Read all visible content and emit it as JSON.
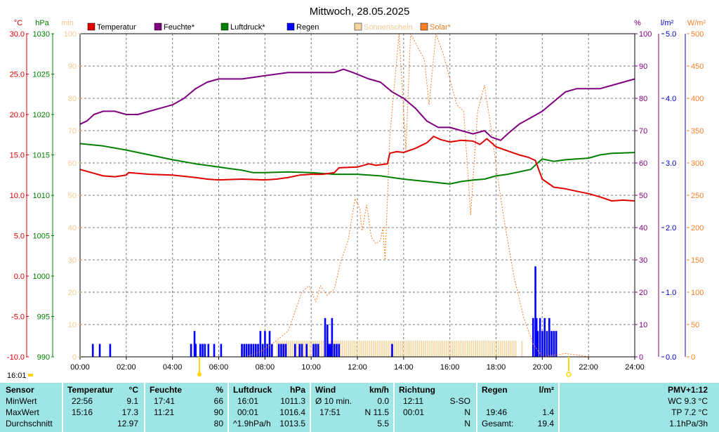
{
  "chart_data": {
    "type": "line",
    "title": "Mittwoch, 28.05.2025",
    "legend": [
      {
        "name": "Temperatur",
        "color": "#e00000"
      },
      {
        "name": "Feuchte*",
        "color": "#800080"
      },
      {
        "name": "Luftdruck*",
        "color": "#008000"
      },
      {
        "name": "Regen",
        "color": "#0000ff"
      },
      {
        "name": "Sonnenschein",
        "color": "#f5d5a0"
      },
      {
        "name": "Solar*",
        "color": "#ff7f27"
      }
    ],
    "axes": {
      "temp": {
        "unit": "°C",
        "min": -10,
        "max": 30,
        "ticks": [
          "30.0",
          "25.0",
          "20.0",
          "15.0",
          "10.0",
          "5.0",
          "0.0",
          "-5.0",
          "-10.0"
        ],
        "color": "#e00000"
      },
      "pressure": {
        "unit": "hPa",
        "min": 990,
        "max": 1030,
        "ticks": [
          "1030",
          "1025",
          "1020",
          "1015",
          "1010",
          "1005",
          "1000",
          "995",
          "990"
        ],
        "color": "#008000"
      },
      "sunshine": {
        "unit": "min",
        "min": 0,
        "max": 100,
        "ticks": [
          "100",
          "90",
          "80",
          "70",
          "60",
          "50",
          "40",
          "30",
          "20",
          "10",
          "0"
        ],
        "color": "#f5c990"
      },
      "humidity": {
        "unit": "%",
        "min": 0,
        "max": 100,
        "ticks": [
          "100",
          "90",
          "80",
          "70",
          "60",
          "50",
          "40",
          "30",
          "20",
          "10",
          "0"
        ],
        "color": "#800080"
      },
      "rain": {
        "unit": "l/m²",
        "min": 0,
        "max": 5,
        "ticks": [
          "5.0",
          "4.0",
          "3.0",
          "2.0",
          "1.0",
          "0.0"
        ],
        "color": "#0000cc"
      },
      "solar": {
        "unit": "W/m²",
        "min": 0,
        "max": 500,
        "ticks": [
          "500",
          "450",
          "400",
          "350",
          "300",
          "250",
          "200",
          "150",
          "100",
          "50",
          "0"
        ],
        "color": "#ff7f27"
      }
    },
    "x_ticks": [
      "00:00",
      "02:00",
      "04:00",
      "06:00",
      "08:00",
      "10:00",
      "12:00",
      "14:00",
      "16:00",
      "18:00",
      "20:00",
      "22:00",
      "24:00"
    ],
    "x_range_h": [
      0,
      24
    ],
    "series": [
      {
        "name": "Temperatur",
        "axis": "temp",
        "color": "#e00000",
        "points": [
          [
            0,
            13.2
          ],
          [
            0.5,
            12.8
          ],
          [
            1,
            12.4
          ],
          [
            1.5,
            12.3
          ],
          [
            2,
            12.5
          ],
          [
            2.1,
            12.8
          ],
          [
            3,
            12.6
          ],
          [
            4,
            12.5
          ],
          [
            5,
            12.2
          ],
          [
            5.5,
            12.0
          ],
          [
            6,
            11.9
          ],
          [
            7,
            12.0
          ],
          [
            8,
            11.9
          ],
          [
            8.5,
            12.0
          ],
          [
            9,
            12.2
          ],
          [
            9.5,
            12.5
          ],
          [
            10,
            12.6
          ],
          [
            10.5,
            12.6
          ],
          [
            11,
            12.8
          ],
          [
            11.2,
            13.4
          ],
          [
            12,
            13.5
          ],
          [
            12.5,
            13.9
          ],
          [
            12.8,
            13.7
          ],
          [
            13.3,
            13.9
          ],
          [
            13.4,
            15.2
          ],
          [
            13.7,
            15.4
          ],
          [
            14,
            15.3
          ],
          [
            14.5,
            15.8
          ],
          [
            15,
            16.5
          ],
          [
            15.3,
            17.3
          ],
          [
            15.6,
            16.9
          ],
          [
            16,
            16.6
          ],
          [
            16.5,
            16.8
          ],
          [
            17,
            16.7
          ],
          [
            17.3,
            16.3
          ],
          [
            17.6,
            17.0
          ],
          [
            18,
            16.0
          ],
          [
            18.5,
            15.5
          ],
          [
            19,
            15.0
          ],
          [
            19.4,
            14.7
          ],
          [
            19.7,
            14.3
          ],
          [
            20,
            12.0
          ],
          [
            20.5,
            11.0
          ],
          [
            21,
            10.8
          ],
          [
            21.5,
            10.5
          ],
          [
            22,
            10.2
          ],
          [
            22.5,
            9.8
          ],
          [
            23,
            9.3
          ],
          [
            23.5,
            9.4
          ],
          [
            24,
            9.3
          ]
        ]
      },
      {
        "name": "Feuchte*",
        "axis": "humidity",
        "color": "#800080",
        "points": [
          [
            0,
            72
          ],
          [
            0.3,
            73
          ],
          [
            0.6,
            75
          ],
          [
            1,
            76
          ],
          [
            1.5,
            76
          ],
          [
            2,
            75
          ],
          [
            2.5,
            75
          ],
          [
            3,
            76
          ],
          [
            3.5,
            77
          ],
          [
            4,
            78
          ],
          [
            4.5,
            80
          ],
          [
            5,
            83
          ],
          [
            5.5,
            85
          ],
          [
            6,
            86
          ],
          [
            6.5,
            86
          ],
          [
            7,
            86
          ],
          [
            7.5,
            86.5
          ],
          [
            8,
            87
          ],
          [
            8.5,
            87.5
          ],
          [
            9,
            88
          ],
          [
            10,
            88
          ],
          [
            11,
            88
          ],
          [
            11.4,
            89
          ],
          [
            11.8,
            88
          ],
          [
            12.5,
            86
          ],
          [
            13,
            85
          ],
          [
            13.5,
            82
          ],
          [
            14,
            80
          ],
          [
            14.5,
            77
          ],
          [
            15,
            73
          ],
          [
            15.5,
            71
          ],
          [
            16,
            71
          ],
          [
            16.5,
            70
          ],
          [
            17,
            69
          ],
          [
            17.5,
            70
          ],
          [
            17.8,
            68
          ],
          [
            18.2,
            67
          ],
          [
            18.5,
            69
          ],
          [
            19,
            72
          ],
          [
            19.5,
            74
          ],
          [
            20,
            76
          ],
          [
            20.5,
            79
          ],
          [
            21,
            82
          ],
          [
            21.5,
            83
          ],
          [
            22,
            83
          ],
          [
            22.5,
            83
          ],
          [
            23,
            84
          ],
          [
            23.5,
            85
          ],
          [
            24,
            86
          ]
        ]
      },
      {
        "name": "Luftdruck*",
        "axis": "pressure",
        "color": "#008000",
        "points": [
          [
            0,
            1016.4
          ],
          [
            1,
            1016.1
          ],
          [
            2,
            1015.6
          ],
          [
            3,
            1015.0
          ],
          [
            4,
            1014.4
          ],
          [
            5,
            1013.9
          ],
          [
            6,
            1013.5
          ],
          [
            6.5,
            1013.3
          ],
          [
            7,
            1013.1
          ],
          [
            7.5,
            1012.8
          ],
          [
            8,
            1012.8
          ],
          [
            9,
            1012.9
          ],
          [
            10,
            1012.8
          ],
          [
            11,
            1012.6
          ],
          [
            12,
            1012.6
          ],
          [
            13,
            1012.4
          ],
          [
            14,
            1012.0
          ],
          [
            15,
            1011.7
          ],
          [
            16,
            1011.4
          ],
          [
            16.5,
            1011.7
          ],
          [
            17,
            1011.9
          ],
          [
            17.5,
            1012.0
          ],
          [
            18,
            1012.4
          ],
          [
            18.5,
            1012.6
          ],
          [
            19,
            1012.9
          ],
          [
            19.5,
            1013.2
          ],
          [
            19.8,
            1014.0
          ],
          [
            20,
            1014.5
          ],
          [
            20.5,
            1014.2
          ],
          [
            21,
            1014.4
          ],
          [
            22,
            1014.6
          ],
          [
            22.5,
            1015.0
          ],
          [
            23,
            1015.2
          ],
          [
            24,
            1015.3
          ]
        ]
      },
      {
        "name": "Solar*",
        "axis": "solar",
        "color": "#ff7f27",
        "dashed": true,
        "points": [
          [
            0,
            0
          ],
          [
            7.2,
            0
          ],
          [
            7.8,
            8
          ],
          [
            8.5,
            25
          ],
          [
            9,
            40
          ],
          [
            9.3,
            70
          ],
          [
            9.6,
            100
          ],
          [
            9.9,
            110
          ],
          [
            10.2,
            85
          ],
          [
            10.4,
            110
          ],
          [
            10.7,
            95
          ],
          [
            11,
            105
          ],
          [
            11.3,
            150
          ],
          [
            11.6,
            180
          ],
          [
            11.9,
            245
          ],
          [
            12.1,
            230
          ],
          [
            12.2,
            195
          ],
          [
            12.4,
            235
          ],
          [
            12.6,
            185
          ],
          [
            12.8,
            175
          ],
          [
            13.0,
            180
          ],
          [
            13.1,
            200
          ],
          [
            13.2,
            150
          ],
          [
            13.4,
            340
          ],
          [
            13.8,
            500
          ],
          [
            14.1,
            320
          ],
          [
            14.3,
            500
          ],
          [
            14.6,
            480
          ],
          [
            14.9,
            460
          ],
          [
            15.1,
            390
          ],
          [
            15.4,
            500
          ],
          [
            15.7,
            470
          ],
          [
            16.0,
            430
          ],
          [
            16.3,
            390
          ],
          [
            16.6,
            380
          ],
          [
            16.9,
            220
          ],
          [
            17.2,
            380
          ],
          [
            17.5,
            420
          ],
          [
            17.8,
            350
          ],
          [
            18.1,
            270
          ],
          [
            18.4,
            200
          ],
          [
            18.8,
            120
          ],
          [
            19.2,
            60
          ],
          [
            19.6,
            20
          ],
          [
            20,
            0
          ],
          [
            21,
            5
          ],
          [
            21.5,
            3
          ],
          [
            22,
            0
          ],
          [
            24,
            0
          ]
        ]
      },
      {
        "name": "Regen",
        "axis": "rain",
        "color": "#0000ff",
        "type": "bar",
        "points": [
          [
            0.55,
            0.2
          ],
          [
            0.85,
            0.2
          ],
          [
            1.3,
            0.2
          ],
          [
            4.8,
            0.2
          ],
          [
            4.95,
            0.4
          ],
          [
            5.0,
            0.2
          ],
          [
            5.2,
            0.2
          ],
          [
            5.3,
            0.2
          ],
          [
            5.4,
            0.2
          ],
          [
            5.55,
            0.2
          ],
          [
            5.8,
            0.2
          ],
          [
            6.1,
            0.2
          ],
          [
            7.0,
            0.2
          ],
          [
            7.1,
            0.2
          ],
          [
            7.2,
            0.2
          ],
          [
            7.3,
            0.2
          ],
          [
            7.4,
            0.2
          ],
          [
            7.5,
            0.2
          ],
          [
            7.6,
            0.2
          ],
          [
            7.7,
            0.2
          ],
          [
            7.8,
            0.4
          ],
          [
            7.9,
            0.2
          ],
          [
            8.0,
            0.4
          ],
          [
            8.1,
            0.2
          ],
          [
            8.2,
            0.4
          ],
          [
            8.3,
            0.2
          ],
          [
            8.6,
            0.2
          ],
          [
            8.7,
            0.2
          ],
          [
            8.8,
            0.2
          ],
          [
            8.9,
            0.2
          ],
          [
            9.3,
            0.2
          ],
          [
            9.5,
            0.2
          ],
          [
            9.6,
            0.2
          ],
          [
            9.8,
            0.2
          ],
          [
            10.1,
            0.2
          ],
          [
            10.2,
            0.2
          ],
          [
            10.3,
            0.2
          ],
          [
            10.6,
            0.6
          ],
          [
            10.7,
            0.5
          ],
          [
            10.75,
            0.2
          ],
          [
            10.8,
            0.2
          ],
          [
            10.85,
            0.2
          ],
          [
            10.9,
            0.6
          ],
          [
            11.0,
            0.2
          ],
          [
            11.1,
            0.2
          ],
          [
            11.2,
            0.2
          ],
          [
            13.5,
            0.2
          ],
          [
            19.6,
            0.6
          ],
          [
            19.7,
            1.4
          ],
          [
            19.75,
            0.6
          ],
          [
            19.8,
            0.4
          ],
          [
            19.9,
            0.6
          ],
          [
            20.0,
            0.4
          ],
          [
            20.1,
            0.6
          ],
          [
            20.2,
            0.4
          ],
          [
            20.3,
            0.6
          ],
          [
            20.4,
            0.4
          ],
          [
            20.5,
            0.4
          ],
          [
            20.6,
            0.4
          ]
        ]
      }
    ],
    "sunshine_bars": {
      "axis": "sunshine",
      "color": "#f5d5a0",
      "start_h": 8.5,
      "end_h": 18.9,
      "value_min": 5,
      "extra": [
        [
          19.1,
          5
        ]
      ]
    },
    "left_marker": "16:01"
  },
  "stats": {
    "sensor": {
      "header": "Sensor",
      "rows": [
        "MinWert",
        "MaxWert",
        "Durchschnitt"
      ]
    },
    "temperatur": {
      "header": "Temperatur",
      "unit": "°C",
      "min": {
        "time": "22:56",
        "value": "9.1"
      },
      "max": {
        "time": "15:16",
        "value": "17.3"
      },
      "avg": {
        "time": "",
        "value": "12.97"
      }
    },
    "feuchte": {
      "header": "Feuchte",
      "unit": "%",
      "min": {
        "time": "17:41",
        "value": "66"
      },
      "max": {
        "time": "11:21",
        "value": "90"
      },
      "avg": {
        "time": "",
        "value": "80"
      }
    },
    "luftdruck": {
      "header": "Luftdruck",
      "unit": "hPa",
      "min": {
        "time": "16:01",
        "value": "1011.3"
      },
      "max": {
        "time": "00:01",
        "value": "1016.4"
      },
      "avg": {
        "time": "^1.9hPa/h",
        "value": "1013.5"
      }
    },
    "wind": {
      "header": "Wind",
      "unit": "km/h",
      "min": {
        "time": "Ø 10 min.",
        "value": "0.0"
      },
      "max": {
        "time": "17:51",
        "value": "N 11.5"
      },
      "avg": {
        "time": "",
        "value": "5.5"
      }
    },
    "richtung": {
      "header": "Richtung",
      "min": {
        "time": "12:11",
        "value": "S-SO"
      },
      "max": {
        "time": "00:01",
        "value": "N"
      },
      "avg": {
        "time": "",
        "value": "N"
      }
    },
    "regen": {
      "header": "Regen",
      "unit": "l/m²",
      "min": {
        "time": "",
        "value": ""
      },
      "max": {
        "time": "19:46",
        "value": "1.4"
      },
      "avg": {
        "time": "Gesamt:",
        "value": "19.4"
      }
    },
    "pmv": {
      "header": "PMV+1:12",
      "rows": [
        "WC 9.3 °C",
        "TP 7.2 °C",
        "1.1hPa/3h"
      ]
    }
  }
}
